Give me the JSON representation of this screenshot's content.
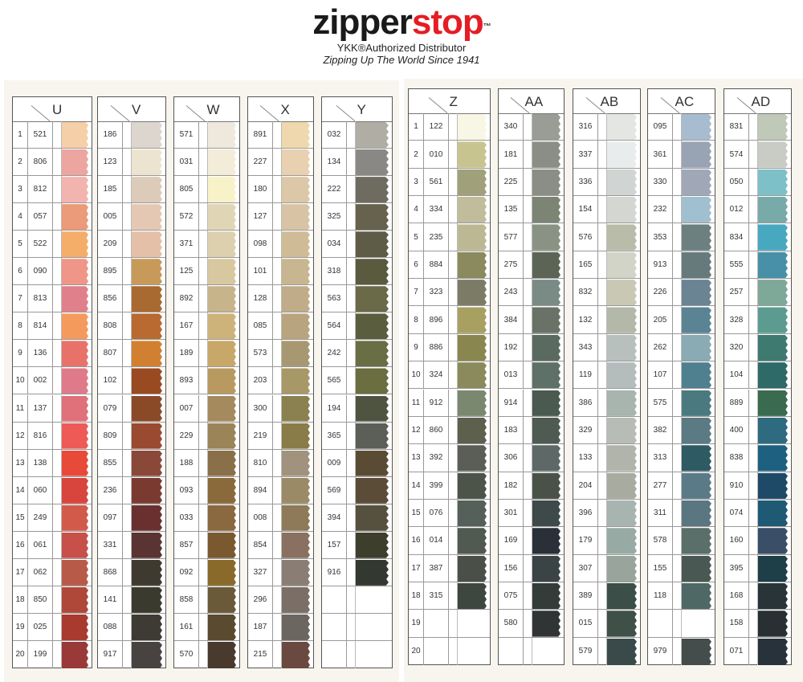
{
  "logo": {
    "brand_part1": "zipper",
    "brand_part2": "stop",
    "tm": "™",
    "tagline1": "YKK®Authorized Distributor",
    "tagline2": "Zipping Up The World Since 1941"
  },
  "colors": {
    "brand_red": "#e31e24"
  },
  "panels": [
    {
      "row_numbers": [
        "1",
        "2",
        "3",
        "4",
        "5",
        "6",
        "7",
        "8",
        "9",
        "10",
        "11",
        "12",
        "13",
        "14",
        "15",
        "16",
        "17",
        "18",
        "19",
        "20"
      ],
      "columns": [
        {
          "label": "U",
          "rows": [
            {
              "code": "521",
              "color": "#f5cfa8"
            },
            {
              "code": "806",
              "color": "#eda5a0"
            },
            {
              "code": "812",
              "color": "#f2b4ae"
            },
            {
              "code": "057",
              "color": "#eb9a7a"
            },
            {
              "code": "522",
              "color": "#f5ad6a"
            },
            {
              "code": "090",
              "color": "#f09688"
            },
            {
              "code": "813",
              "color": "#e0808a"
            },
            {
              "code": "814",
              "color": "#f49a5c"
            },
            {
              "code": "136",
              "color": "#e8726a"
            },
            {
              "code": "002",
              "color": "#df7a8a"
            },
            {
              "code": "137",
              "color": "#e0707a"
            },
            {
              "code": "816",
              "color": "#ee5a55"
            },
            {
              "code": "138",
              "color": "#e84a3a"
            },
            {
              "code": "060",
              "color": "#d8453c"
            },
            {
              "code": "249",
              "color": "#d25a4a"
            },
            {
              "code": "061",
              "color": "#c8504a"
            },
            {
              "code": "062",
              "color": "#b85a48"
            },
            {
              "code": "850",
              "color": "#b0483a"
            },
            {
              "code": "025",
              "color": "#a83a30"
            },
            {
              "code": "199",
              "color": "#9a3a38"
            }
          ]
        },
        {
          "label": "V",
          "rows": [
            {
              "code": "186",
              "color": "#dcd6ce"
            },
            {
              "code": "123",
              "color": "#ece4d0"
            },
            {
              "code": "185",
              "color": "#dccbb8"
            },
            {
              "code": "005",
              "color": "#e5c8b4"
            },
            {
              "code": "209",
              "color": "#e5c0a8"
            },
            {
              "code": "895",
              "color": "#c89a5a"
            },
            {
              "code": "856",
              "color": "#a86a30"
            },
            {
              "code": "808",
              "color": "#b86a30"
            },
            {
              "code": "807",
              "color": "#d08030"
            },
            {
              "code": "102",
              "color": "#9a4a20"
            },
            {
              "code": "079",
              "color": "#8a4a28"
            },
            {
              "code": "809",
              "color": "#9a4a30"
            },
            {
              "code": "855",
              "color": "#8a4838"
            },
            {
              "code": "236",
              "color": "#7a3a30"
            },
            {
              "code": "097",
              "color": "#6a3030"
            },
            {
              "code": "331",
              "color": "#5a3432"
            },
            {
              "code": "868",
              "color": "#3e3a30"
            },
            {
              "code": "141",
              "color": "#3a3a2e"
            },
            {
              "code": "088",
              "color": "#3e3a34"
            },
            {
              "code": "917",
              "color": "#484240"
            }
          ]
        },
        {
          "label": "W",
          "rows": [
            {
              "code": "571",
              "color": "#efe8dc"
            },
            {
              "code": "031",
              "color": "#f2ecd8"
            },
            {
              "code": "805",
              "color": "#f8f2c8"
            },
            {
              "code": "572",
              "color": "#e0d6b6"
            },
            {
              "code": "371",
              "color": "#dcd0ae"
            },
            {
              "code": "125",
              "color": "#d8c8a0"
            },
            {
              "code": "892",
              "color": "#c8b48a"
            },
            {
              "code": "167",
              "color": "#cdb27a"
            },
            {
              "code": "189",
              "color": "#c8a868"
            },
            {
              "code": "893",
              "color": "#b89a60"
            },
            {
              "code": "007",
              "color": "#a48a5c"
            },
            {
              "code": "229",
              "color": "#9a8458"
            },
            {
              "code": "188",
              "color": "#8a7048"
            },
            {
              "code": "093",
              "color": "#8a6a3a"
            },
            {
              "code": "033",
              "color": "#8a6840"
            },
            {
              "code": "857",
              "color": "#7a5830"
            },
            {
              "code": "092",
              "color": "#8a6a2a"
            },
            {
              "code": "858",
              "color": "#6a5a3a"
            },
            {
              "code": "161",
              "color": "#5a4a30"
            },
            {
              "code": "570",
              "color": "#4a3a2e"
            }
          ]
        },
        {
          "label": "X",
          "rows": [
            {
              "code": "891",
              "color": "#efd8ae"
            },
            {
              "code": "227",
              "color": "#e8d0b0"
            },
            {
              "code": "180",
              "color": "#dcc8a8"
            },
            {
              "code": "127",
              "color": "#d8c4a4"
            },
            {
              "code": "098",
              "color": "#cfbc96"
            },
            {
              "code": "101",
              "color": "#c8b690"
            },
            {
              "code": "128",
              "color": "#c0ac88"
            },
            {
              "code": "085",
              "color": "#b8a47e"
            },
            {
              "code": "573",
              "color": "#a89872"
            },
            {
              "code": "203",
              "color": "#a89868"
            },
            {
              "code": "300",
              "color": "#8a8050"
            },
            {
              "code": "219",
              "color": "#8a7c48"
            },
            {
              "code": "810",
              "color": "#a0927c"
            },
            {
              "code": "894",
              "color": "#9a8a66"
            },
            {
              "code": "008",
              "color": "#8e7a58"
            },
            {
              "code": "854",
              "color": "#8a7060"
            },
            {
              "code": "327",
              "color": "#8a7e74"
            },
            {
              "code": "296",
              "color": "#7a6e66"
            },
            {
              "code": "187",
              "color": "#6c6660"
            },
            {
              "code": "215",
              "color": "#6a4a40"
            }
          ]
        },
        {
          "label": "Y",
          "rows": [
            {
              "code": "032",
              "color": "#b0aea4"
            },
            {
              "code": "134",
              "color": "#8a8884"
            },
            {
              "code": "222",
              "color": "#6e6c60"
            },
            {
              "code": "325",
              "color": "#66624e"
            },
            {
              "code": "034",
              "color": "#5e5c46"
            },
            {
              "code": "318",
              "color": "#5a5a3e"
            },
            {
              "code": "563",
              "color": "#6a6a48"
            },
            {
              "code": "564",
              "color": "#5a5e3e"
            },
            {
              "code": "242",
              "color": "#6a6e44"
            },
            {
              "code": "565",
              "color": "#6a6e40"
            },
            {
              "code": "194",
              "color": "#4e5440"
            },
            {
              "code": "365",
              "color": "#5c5e58"
            },
            {
              "code": "009",
              "color": "#5a4c34"
            },
            {
              "code": "569",
              "color": "#5a4c36"
            },
            {
              "code": "394",
              "color": "#56503e"
            },
            {
              "code": "157",
              "color": "#3e3e2c"
            },
            {
              "code": "916",
              "color": "#333830"
            },
            {
              "code": "",
              "color": ""
            },
            {
              "code": "",
              "color": ""
            },
            {
              "code": "",
              "color": ""
            }
          ]
        }
      ]
    },
    {
      "row_numbers": [
        "1",
        "2",
        "3",
        "4",
        "5",
        "6",
        "7",
        "8",
        "9",
        "10",
        "11",
        "12",
        "13",
        "14",
        "15",
        "16",
        "17",
        "18",
        "19",
        "20"
      ],
      "columns": [
        {
          "label": "Z",
          "rows": [
            {
              "code": "122",
              "color": "#f8f6e4"
            },
            {
              "code": "010",
              "color": "#c8c490"
            },
            {
              "code": "561",
              "color": "#a0a07a"
            },
            {
              "code": "334",
              "color": "#c0bc9c"
            },
            {
              "code": "235",
              "color": "#bcb894"
            },
            {
              "code": "884",
              "color": "#8a8a5e"
            },
            {
              "code": "323",
              "color": "#7c7c66"
            },
            {
              "code": "896",
              "color": "#a8a060"
            },
            {
              "code": "886",
              "color": "#8a8650"
            },
            {
              "code": "324",
              "color": "#8a8a5c"
            },
            {
              "code": "912",
              "color": "#7a8870"
            },
            {
              "code": "860",
              "color": "#5c604c"
            },
            {
              "code": "392",
              "color": "#5a5e56"
            },
            {
              "code": "399",
              "color": "#4c544a"
            },
            {
              "code": "076",
              "color": "#56605a"
            },
            {
              "code": "014",
              "color": "#505a50"
            },
            {
              "code": "387",
              "color": "#4a5048"
            },
            {
              "code": "315",
              "color": "#3e4640"
            },
            {
              "code": "",
              "color": ""
            },
            {
              "code": "",
              "color": ""
            }
          ]
        },
        {
          "label": "AA",
          "rows": [
            {
              "code": "340",
              "color": "#9a9c96"
            },
            {
              "code": "181",
              "color": "#8a8e86"
            },
            {
              "code": "225",
              "color": "#8a8e84"
            },
            {
              "code": "135",
              "color": "#7c8474"
            },
            {
              "code": "577",
              "color": "#8a9284"
            },
            {
              "code": "275",
              "color": "#5c6456"
            },
            {
              "code": "243",
              "color": "#7a8a84"
            },
            {
              "code": "384",
              "color": "#6a7268"
            },
            {
              "code": "192",
              "color": "#5a6a60"
            },
            {
              "code": "013",
              "color": "#5e7068"
            },
            {
              "code": "914",
              "color": "#4a5a50"
            },
            {
              "code": "183",
              "color": "#4e5a52"
            },
            {
              "code": "306",
              "color": "#5e6866"
            },
            {
              "code": "182",
              "color": "#4a5248"
            },
            {
              "code": "301",
              "color": "#3e4a4a"
            },
            {
              "code": "169",
              "color": "#2a3038"
            },
            {
              "code": "156",
              "color": "#3a4444"
            },
            {
              "code": "075",
              "color": "#343c3a"
            },
            {
              "code": "580",
              "color": "#303434"
            },
            {
              "code": "",
              "color": ""
            }
          ]
        },
        {
          "label": "AB",
          "rows": [
            {
              "code": "316",
              "color": "#e4e6e4"
            },
            {
              "code": "337",
              "color": "#e8ecec"
            },
            {
              "code": "336",
              "color": "#d0d4d2"
            },
            {
              "code": "154",
              "color": "#d4d6d2"
            },
            {
              "code": "576",
              "color": "#b8bca8"
            },
            {
              "code": "165",
              "color": "#d2d4c8"
            },
            {
              "code": "832",
              "color": "#c8c8b4"
            },
            {
              "code": "132",
              "color": "#b4b8a8"
            },
            {
              "code": "343",
              "color": "#b8c0be"
            },
            {
              "code": "119",
              "color": "#b4bcbc"
            },
            {
              "code": "386",
              "color": "#a8b4ae"
            },
            {
              "code": "329",
              "color": "#b8bcb6"
            },
            {
              "code": "133",
              "color": "#b0b4aa"
            },
            {
              "code": "204",
              "color": "#a8aca0"
            },
            {
              "code": "396",
              "color": "#a8b4b0"
            },
            {
              "code": "179",
              "color": "#98aaa4"
            },
            {
              "code": "307",
              "color": "#98a49c"
            },
            {
              "code": "389",
              "color": "#3c4e48"
            },
            {
              "code": "015",
              "color": "#3e5048"
            },
            {
              "code": "579",
              "color": "#3a4a4a"
            }
          ]
        },
        {
          "label": "AC",
          "rows": [
            {
              "code": "095",
              "color": "#a8bcd0"
            },
            {
              "code": "361",
              "color": "#98a4b4"
            },
            {
              "code": "330",
              "color": "#a0a8b8"
            },
            {
              "code": "232",
              "color": "#a0c0d0"
            },
            {
              "code": "353",
              "color": "#6c8080"
            },
            {
              "code": "913",
              "color": "#667a7c"
            },
            {
              "code": "226",
              "color": "#6a8494"
            },
            {
              "code": "205",
              "color": "#5a8494"
            },
            {
              "code": "262",
              "color": "#8aaab4"
            },
            {
              "code": "107",
              "color": "#4e8090"
            },
            {
              "code": "575",
              "color": "#4a7a80"
            },
            {
              "code": "382",
              "color": "#5a7a84"
            },
            {
              "code": "313",
              "color": "#2e5a64"
            },
            {
              "code": "277",
              "color": "#5a7a88"
            },
            {
              "code": "311",
              "color": "#5a7680"
            },
            {
              "code": "578",
              "color": "#5a6e6a"
            },
            {
              "code": "155",
              "color": "#4a5854"
            },
            {
              "code": "118",
              "color": "#4e6866"
            },
            {
              "code": "",
              "color": ""
            },
            {
              "code": "979",
              "color": "#444c4c"
            }
          ]
        },
        {
          "label": "AD",
          "rows": [
            {
              "code": "831",
              "color": "#c0c8b8"
            },
            {
              "code": "574",
              "color": "#c8ccc4"
            },
            {
              "code": "050",
              "color": "#7ec0c8"
            },
            {
              "code": "012",
              "color": "#78aaaa"
            },
            {
              "code": "834",
              "color": "#48a8c0"
            },
            {
              "code": "555",
              "color": "#4890a8"
            },
            {
              "code": "257",
              "color": "#7ea898"
            },
            {
              "code": "328",
              "color": "#5c9c90"
            },
            {
              "code": "320",
              "color": "#3e7a70"
            },
            {
              "code": "104",
              "color": "#2e6a68"
            },
            {
              "code": "889",
              "color": "#3a6a50"
            },
            {
              "code": "400",
              "color": "#2e6a80"
            },
            {
              "code": "838",
              "color": "#1e6080"
            },
            {
              "code": "910",
              "color": "#1e4a68"
            },
            {
              "code": "074",
              "color": "#1e5a74"
            },
            {
              "code": "160",
              "color": "#3a4e68"
            },
            {
              "code": "395",
              "color": "#1e3e48"
            },
            {
              "code": "168",
              "color": "#283438"
            },
            {
              "code": "158",
              "color": "#283034"
            },
            {
              "code": "071",
              "color": "#28323a"
            }
          ]
        }
      ]
    }
  ]
}
